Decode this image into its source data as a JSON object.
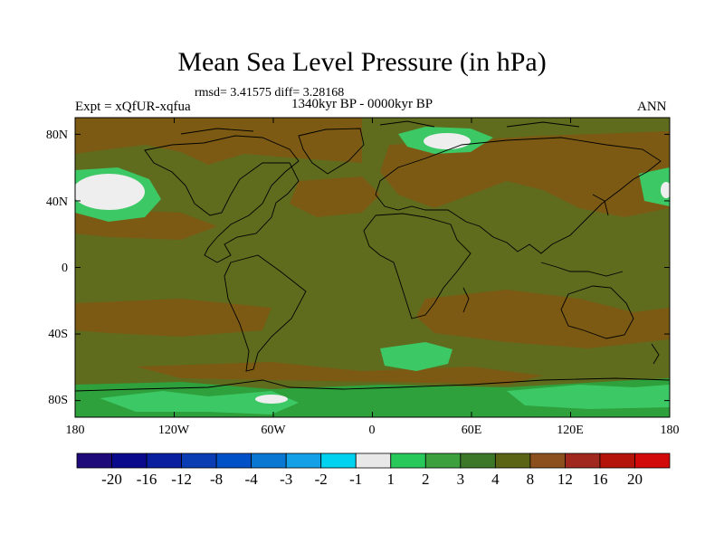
{
  "title": "Mean Sea Level Pressure (in hPa)",
  "stats": "rmsd= 3.41575 diff= 3.28168",
  "period": "1340kyr BP - 0000kyr BP",
  "experiment": "Expt = xQfUR-xqfua",
  "season": "ANN",
  "lat_labels": [
    "80N",
    "40N",
    "0",
    "40S",
    "80S"
  ],
  "lon_labels": [
    "180",
    "120W",
    "60W",
    "0",
    "60E",
    "120E",
    "180"
  ],
  "colorbar": {
    "labels": [
      "-20",
      "-16",
      "-12",
      "-8",
      "-4",
      "-3",
      "-2",
      "-1",
      "1",
      "2",
      "3",
      "4",
      "8",
      "12",
      "16",
      "20"
    ],
    "colors": [
      "#1e0a78",
      "#0a0a8c",
      "#0a1ea0",
      "#0a3cb4",
      "#0050c8",
      "#0a78d2",
      "#14a0e6",
      "#00d2f0",
      "#e8e8e8",
      "#28c85a",
      "#3ca03c",
      "#3c7828",
      "#5a6414",
      "#8c501e",
      "#a0281e",
      "#b4140a",
      "#d20a0a"
    ]
  },
  "colors": {
    "background_field": "#5f6c1e",
    "brown": "#7c5a14",
    "green": "#2ea03c",
    "light_green": "#3cc864",
    "white": "#eeeeee"
  }
}
